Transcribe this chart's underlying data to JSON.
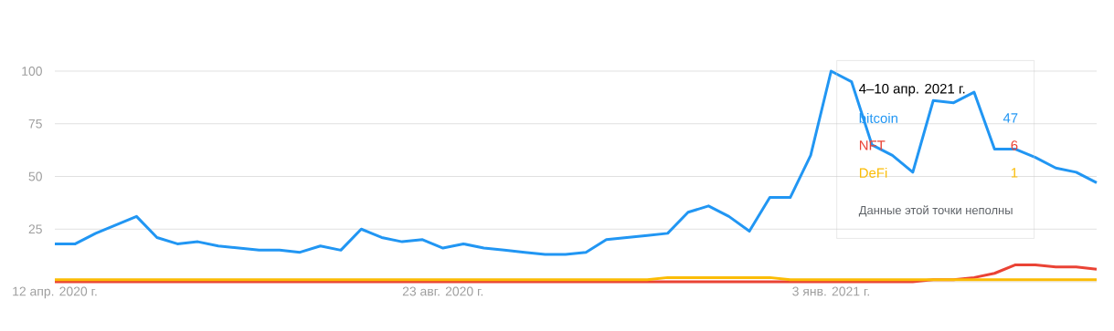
{
  "chart_data": {
    "type": "line",
    "x": [
      "2020-04-12",
      "2020-04-19",
      "2020-04-26",
      "2020-05-03",
      "2020-05-10",
      "2020-05-17",
      "2020-05-24",
      "2020-05-31",
      "2020-06-07",
      "2020-06-14",
      "2020-06-21",
      "2020-06-28",
      "2020-07-05",
      "2020-07-12",
      "2020-07-19",
      "2020-07-26",
      "2020-08-02",
      "2020-08-09",
      "2020-08-16",
      "2020-08-23",
      "2020-08-30",
      "2020-09-06",
      "2020-09-13",
      "2020-09-20",
      "2020-09-27",
      "2020-10-04",
      "2020-10-11",
      "2020-10-18",
      "2020-10-25",
      "2020-11-01",
      "2020-11-08",
      "2020-11-15",
      "2020-11-22",
      "2020-11-29",
      "2020-12-06",
      "2020-12-13",
      "2020-12-20",
      "2020-12-27",
      "2021-01-03",
      "2021-01-10",
      "2021-01-17",
      "2021-01-24",
      "2021-01-31",
      "2021-02-07",
      "2021-02-14",
      "2021-02-21",
      "2021-02-28",
      "2021-03-07",
      "2021-03-14",
      "2021-03-21",
      "2021-03-28",
      "2021-04-04"
    ],
    "series": [
      {
        "name": "bitcoin",
        "color": "#2196f3",
        "values": [
          18,
          18,
          23,
          27,
          31,
          21,
          18,
          19,
          17,
          16,
          15,
          15,
          14,
          17,
          15,
          25,
          21,
          19,
          20,
          16,
          18,
          16,
          15,
          14,
          13,
          13,
          14,
          20,
          21,
          22,
          23,
          33,
          36,
          31,
          24,
          40,
          40,
          60,
          100,
          95,
          65,
          60,
          52,
          86,
          85,
          90,
          63,
          63,
          59,
          54,
          52,
          47
        ]
      },
      {
        "name": "NFT",
        "color": "#ea4335",
        "values": [
          0,
          0,
          0,
          0,
          0,
          0,
          0,
          0,
          0,
          0,
          0,
          0,
          0,
          0,
          0,
          0,
          0,
          0,
          0,
          0,
          0,
          0,
          0,
          0,
          0,
          0,
          0,
          0,
          0,
          0,
          0,
          0,
          0,
          0,
          0,
          0,
          0,
          0,
          0,
          0,
          0,
          0,
          0,
          1,
          1,
          2,
          4,
          8,
          8,
          7,
          7,
          6
        ]
      },
      {
        "name": "DeFi",
        "color": "#fbbc04",
        "values": [
          1,
          1,
          1,
          1,
          1,
          1,
          1,
          1,
          1,
          1,
          1,
          1,
          1,
          1,
          1,
          1,
          1,
          1,
          1,
          1,
          1,
          1,
          1,
          1,
          1,
          1,
          1,
          1,
          1,
          1,
          2,
          2,
          2,
          2,
          2,
          2,
          1,
          1,
          1,
          1,
          1,
          1,
          1,
          1,
          1,
          1,
          1,
          1,
          1,
          1,
          1,
          1
        ]
      }
    ],
    "xlim": [
      "2020-04-12",
      "2021-04-04"
    ],
    "xticks": [
      {
        "value": "2020-04-12",
        "label": "12 апр. 2020 г."
      },
      {
        "value": "2020-08-23",
        "label": "23 авг. 2020 г."
      },
      {
        "value": "2021-01-03",
        "label": "3 янв. 2021 г."
      }
    ],
    "ylim": [
      0,
      100
    ],
    "yticks": [
      25,
      50,
      75,
      100
    ],
    "grid": "y",
    "legend": "top right",
    "annotations": [
      "4–10 апр. 2021 г.",
      "47",
      "6",
      "1",
      "Данные этой точки неполны"
    ]
  }
}
